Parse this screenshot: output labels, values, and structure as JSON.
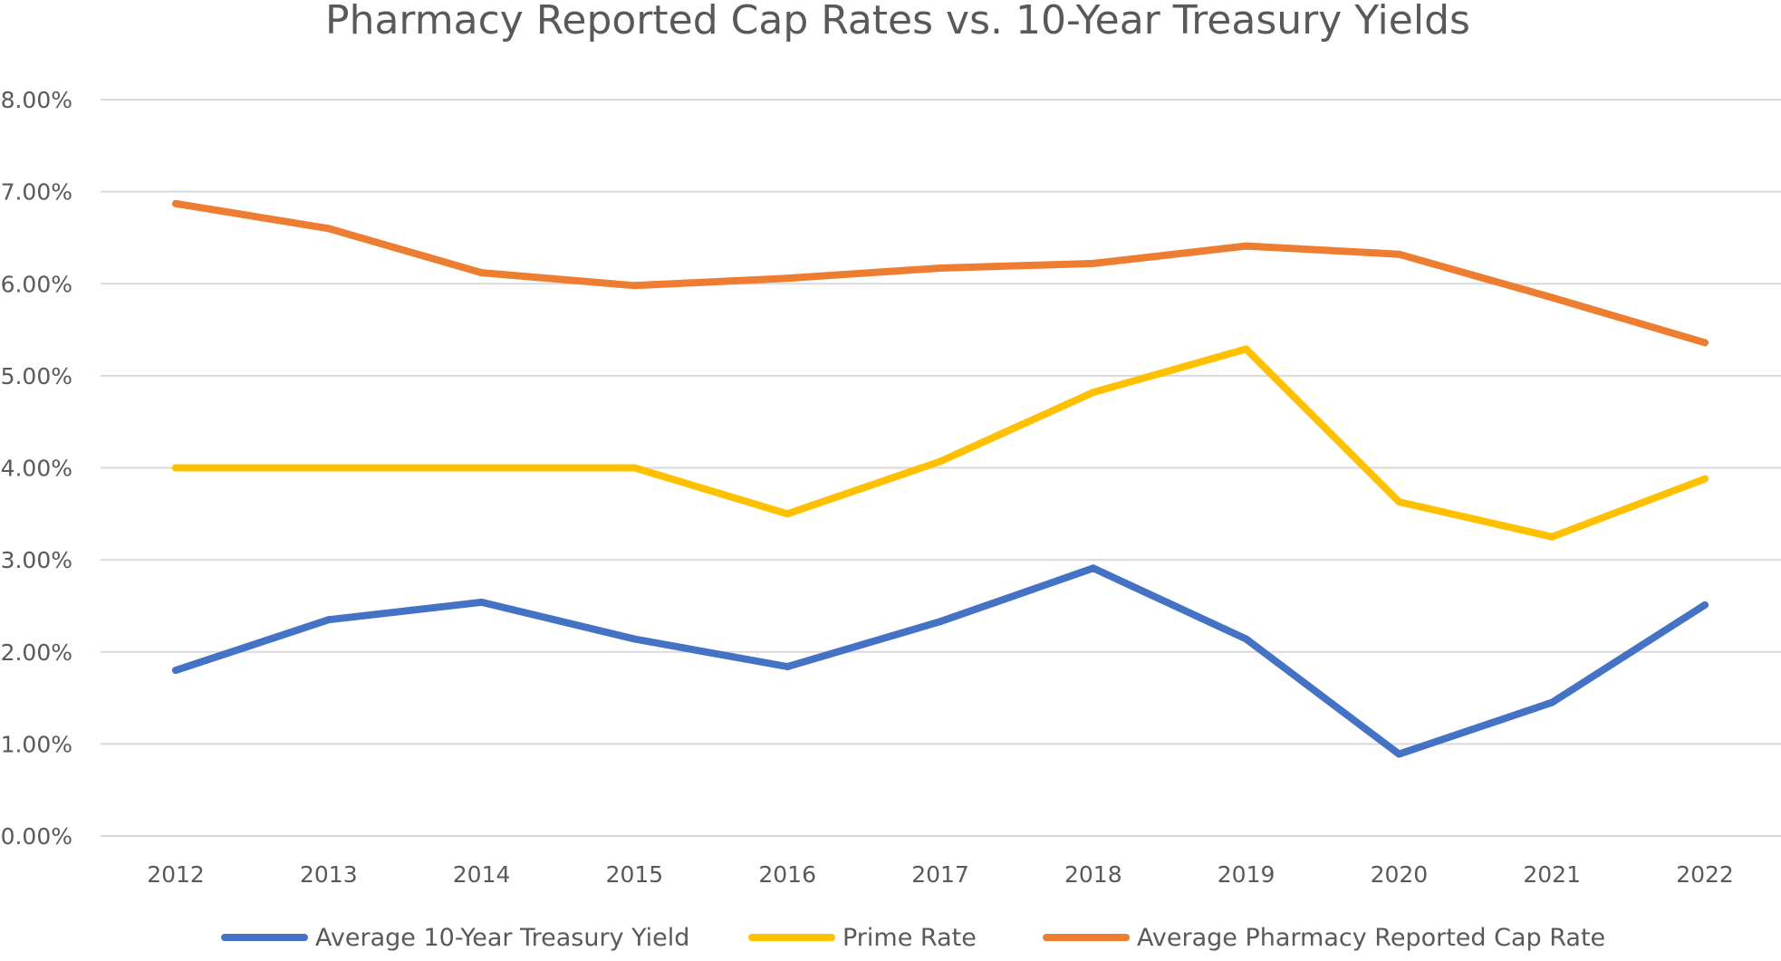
{
  "chart_data": {
    "type": "line",
    "title": "Pharmacy Reported Cap Rates vs. 10-Year Treasury Yields",
    "xlabel": "",
    "ylabel": "",
    "categories": [
      "2012",
      "2013",
      "2014",
      "2015",
      "2016",
      "2017",
      "2018",
      "2019",
      "2020",
      "2021",
      "2022"
    ],
    "ylim": [
      0,
      8
    ],
    "yticks": [
      "0.00%",
      "1.00%",
      "2.00%",
      "3.00%",
      "4.00%",
      "5.00%",
      "6.00%",
      "7.00%",
      "8.00%"
    ],
    "grid": true,
    "legend_position": "bottom",
    "series": [
      {
        "name": "Average 10-Year Treasury Yield",
        "color": "#4472c4",
        "values": [
          1.8,
          2.35,
          2.54,
          2.14,
          1.84,
          2.33,
          2.91,
          2.14,
          0.89,
          1.45,
          2.51
        ]
      },
      {
        "name": "Prime Rate",
        "color": "#ffc000",
        "values": [
          4.0,
          4.0,
          4.0,
          4.0,
          3.5,
          4.07,
          4.82,
          5.29,
          3.63,
          3.25,
          3.88
        ]
      },
      {
        "name": "Average Pharmacy Reported Cap Rate",
        "color": "#ed7d31",
        "values": [
          6.87,
          6.6,
          6.12,
          5.98,
          6.06,
          6.17,
          6.22,
          6.41,
          6.32,
          5.85,
          5.36
        ]
      }
    ]
  }
}
